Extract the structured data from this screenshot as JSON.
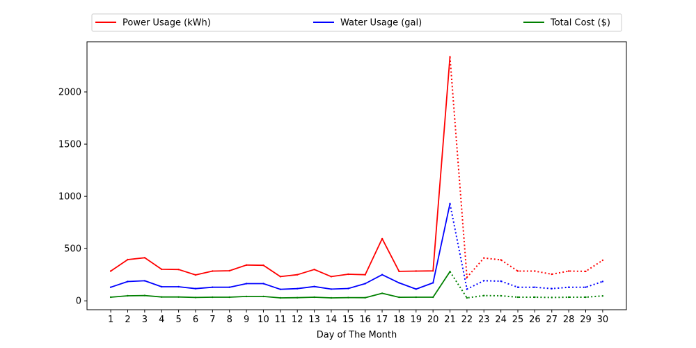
{
  "chart_data": {
    "type": "line",
    "xlabel": "Day of The Month",
    "ylabel": "",
    "x": [
      1,
      2,
      3,
      4,
      5,
      6,
      7,
      8,
      9,
      10,
      11,
      12,
      13,
      14,
      15,
      16,
      17,
      18,
      19,
      20,
      21,
      22,
      23,
      24,
      25,
      26,
      27,
      28,
      29,
      30
    ],
    "xlim": [
      -0.4,
      31.4
    ],
    "ylim": [
      -85,
      2480
    ],
    "yticks": [
      0,
      500,
      1000,
      1500,
      2000
    ],
    "grid": false,
    "legend_position": "top",
    "actual_end_x": 21,
    "projected_style": "dotted",
    "series": [
      {
        "name": "Power Usage (kWh)",
        "color": "#ff0000",
        "values": [
          285,
          395,
          413,
          302,
          300,
          248,
          285,
          288,
          343,
          340,
          232,
          250,
          300,
          232,
          255,
          250,
          595,
          282,
          285,
          287,
          2335,
          225,
          410,
          392,
          285,
          285,
          255,
          285,
          282,
          388
        ]
      },
      {
        "name": "Water Usage (gal)",
        "color": "#0000ff",
        "values": [
          130,
          185,
          192,
          135,
          135,
          117,
          130,
          130,
          165,
          165,
          110,
          117,
          137,
          112,
          118,
          165,
          250,
          172,
          112,
          172,
          930,
          112,
          193,
          188,
          130,
          130,
          117,
          130,
          130,
          185
        ]
      },
      {
        "name": "Total Cost ($)",
        "color": "#008000",
        "values": [
          35,
          48,
          51,
          37,
          37,
          32,
          35,
          35,
          42,
          42,
          28,
          30,
          35,
          28,
          31,
          30,
          72,
          34,
          35,
          35,
          280,
          28,
          50,
          48,
          35,
          35,
          32,
          35,
          35,
          47
        ]
      }
    ]
  }
}
